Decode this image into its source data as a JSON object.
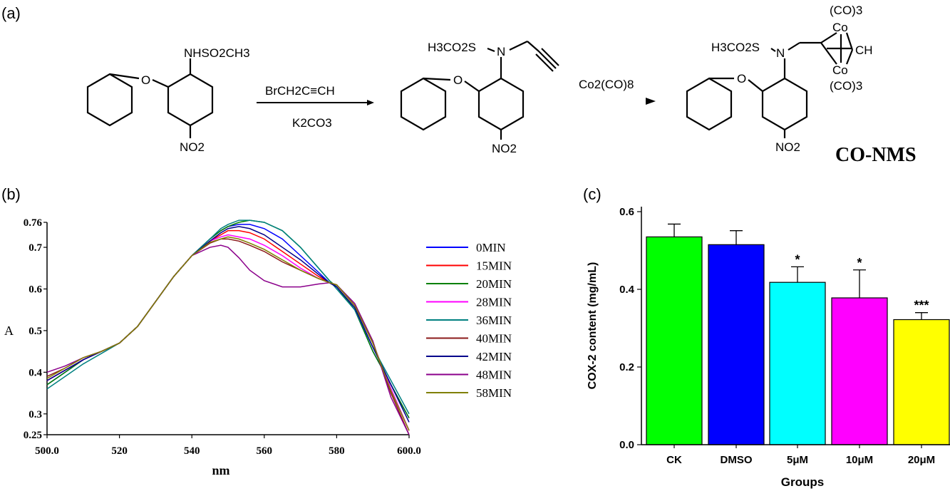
{
  "panel_labels": {
    "a": "(a)",
    "b": "(b)",
    "c": "(c)"
  },
  "scheme": {
    "reactant_group": "NHSO2CH3",
    "nitro": "NO2",
    "reagent_top": "BrCH2C≡CH",
    "reagent_bottom": "K2CO3",
    "intermediate_group": "H3CO2S",
    "n_atom": "N",
    "o_atom": "O",
    "reagent2": "Co2(CO)8",
    "product_group": "H3CO2S",
    "co_top": "(CO)3",
    "co_bottom": "(CO)3",
    "co_atom": "Co",
    "ch": "CH",
    "product_name": "CO-NMS"
  },
  "chart_data": [
    {
      "panel": "b",
      "type": "line",
      "xlabel": "nm",
      "ylabel": "A",
      "xlim": [
        500,
        600
      ],
      "ylim": [
        0.25,
        0.76
      ],
      "xticks": [
        "500.0",
        "520",
        "540",
        "560",
        "580",
        "600.0"
      ],
      "yticks": [
        "0.25",
        "0.3",
        "0.4",
        "0.5",
        "0.6",
        "0.7",
        "0.76"
      ],
      "legend_position": "right",
      "x": [
        500,
        505,
        510,
        515,
        520,
        525,
        530,
        535,
        540,
        545,
        548,
        550,
        553,
        556,
        560,
        565,
        570,
        575,
        578,
        580,
        585,
        590,
        595,
        600
      ],
      "series": [
        {
          "name": "0MIN",
          "color": "#0000ff",
          "values": [
            0.37,
            0.4,
            0.43,
            0.45,
            0.47,
            0.51,
            0.57,
            0.63,
            0.68,
            0.72,
            0.74,
            0.75,
            0.755,
            0.755,
            0.745,
            0.72,
            0.68,
            0.64,
            0.615,
            0.605,
            0.55,
            0.45,
            0.37,
            0.29
          ]
        },
        {
          "name": "15MIN",
          "color": "#ff0000",
          "values": [
            0.38,
            0.405,
            0.43,
            0.45,
            0.47,
            0.51,
            0.57,
            0.63,
            0.68,
            0.715,
            0.73,
            0.74,
            0.74,
            0.735,
            0.72,
            0.69,
            0.66,
            0.63,
            0.615,
            0.61,
            0.56,
            0.47,
            0.36,
            0.26
          ]
        },
        {
          "name": "20MIN",
          "color": "#008000",
          "values": [
            0.37,
            0.4,
            0.43,
            0.45,
            0.47,
            0.51,
            0.57,
            0.63,
            0.68,
            0.72,
            0.74,
            0.75,
            0.76,
            0.765,
            0.76,
            0.74,
            0.7,
            0.65,
            0.62,
            0.605,
            0.55,
            0.45,
            0.37,
            0.29
          ]
        },
        {
          "name": "28MIN",
          "color": "#ff00ff",
          "values": [
            0.38,
            0.405,
            0.43,
            0.45,
            0.47,
            0.51,
            0.57,
            0.63,
            0.68,
            0.715,
            0.725,
            0.73,
            0.725,
            0.72,
            0.705,
            0.68,
            0.65,
            0.625,
            0.615,
            0.61,
            0.56,
            0.47,
            0.36,
            0.26
          ]
        },
        {
          "name": "36MIN",
          "color": "#008080",
          "values": [
            0.36,
            0.39,
            0.42,
            0.445,
            0.47,
            0.51,
            0.57,
            0.63,
            0.68,
            0.72,
            0.745,
            0.755,
            0.765,
            0.765,
            0.76,
            0.74,
            0.7,
            0.65,
            0.62,
            0.6,
            0.55,
            0.46,
            0.38,
            0.3
          ]
        },
        {
          "name": "40MIN",
          "color": "#8b1a1a",
          "values": [
            0.39,
            0.41,
            0.435,
            0.45,
            0.47,
            0.51,
            0.57,
            0.63,
            0.68,
            0.71,
            0.72,
            0.72,
            0.715,
            0.705,
            0.69,
            0.665,
            0.645,
            0.625,
            0.615,
            0.61,
            0.56,
            0.47,
            0.35,
            0.25
          ]
        },
        {
          "name": "42MIN",
          "color": "#00008b",
          "values": [
            0.38,
            0.405,
            0.43,
            0.45,
            0.47,
            0.51,
            0.57,
            0.63,
            0.68,
            0.715,
            0.735,
            0.745,
            0.75,
            0.745,
            0.73,
            0.7,
            0.67,
            0.635,
            0.615,
            0.605,
            0.555,
            0.46,
            0.37,
            0.28
          ]
        },
        {
          "name": "48MIN",
          "color": "#8b008b",
          "values": [
            0.4,
            0.415,
            0.435,
            0.45,
            0.47,
            0.51,
            0.57,
            0.63,
            0.68,
            0.7,
            0.705,
            0.7,
            0.675,
            0.645,
            0.62,
            0.605,
            0.605,
            0.612,
            0.615,
            0.61,
            0.565,
            0.475,
            0.34,
            0.25
          ]
        },
        {
          "name": "58MIN",
          "color": "#808000",
          "values": [
            0.385,
            0.41,
            0.435,
            0.45,
            0.47,
            0.51,
            0.57,
            0.63,
            0.68,
            0.712,
            0.72,
            0.725,
            0.72,
            0.71,
            0.695,
            0.67,
            0.645,
            0.625,
            0.615,
            0.61,
            0.56,
            0.47,
            0.355,
            0.26
          ]
        }
      ]
    },
    {
      "panel": "c",
      "type": "bar",
      "xlabel": "Groups",
      "ylabel": "COX-2 content (mg/mL)",
      "ylim": [
        0,
        0.6
      ],
      "yticks": [
        "0.0",
        "0.2",
        "0.4",
        "0.6"
      ],
      "categories": [
        "CK",
        "DMSO",
        "5μM",
        "10μM",
        "20μM"
      ],
      "values": [
        0.535,
        0.515,
        0.418,
        0.378,
        0.322
      ],
      "errors": [
        0.033,
        0.036,
        0.04,
        0.072,
        0.018
      ],
      "significance": [
        "",
        "",
        "*",
        "*",
        "***"
      ],
      "colors": [
        "#00ff00",
        "#0000ff",
        "#00ffff",
        "#ff00ff",
        "#ffff00"
      ]
    }
  ]
}
